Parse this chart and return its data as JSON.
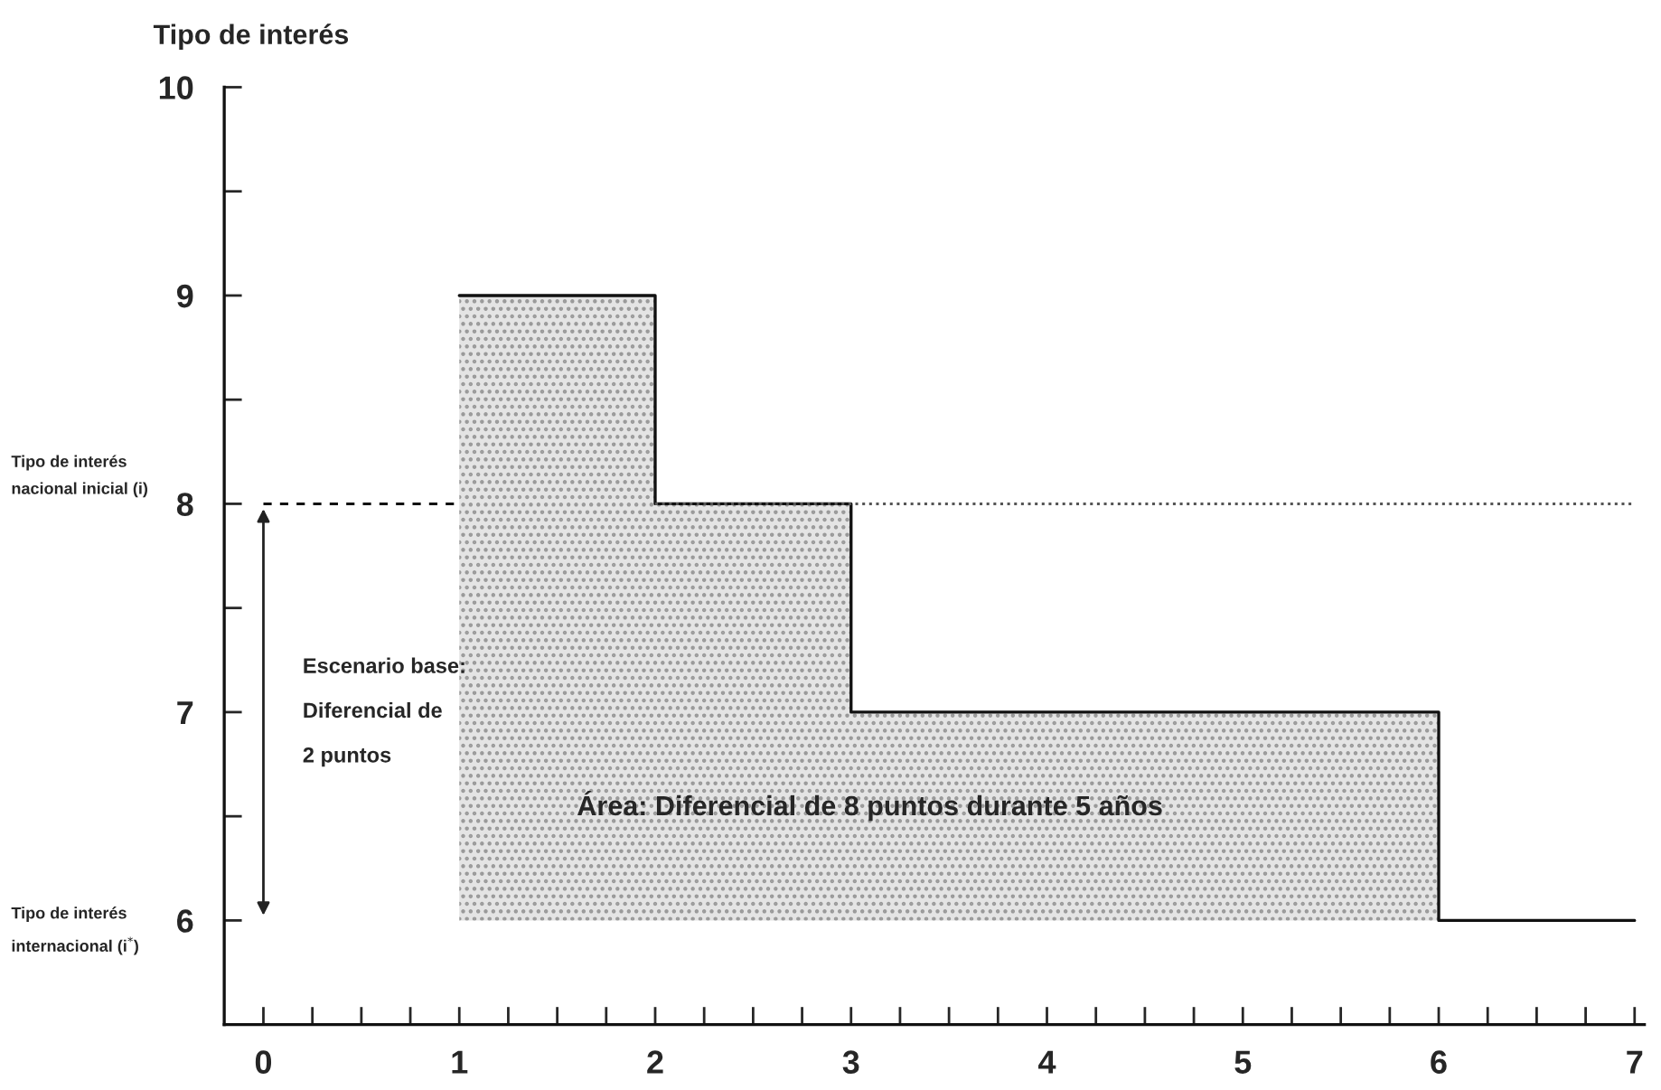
{
  "chart_data": {
    "type": "step",
    "ylabel": "Tipo de interés",
    "xlim": [
      -0.2,
      7.05
    ],
    "ylim": [
      5.5,
      10
    ],
    "xticks": [
      0,
      {
        "value": 0.25,
        "label": null
      },
      {
        "value": 0.5,
        "label": null
      },
      {
        "value": 0.75,
        "label": null
      },
      1,
      {
        "value": 1.25,
        "label": null
      },
      {
        "value": 1.5,
        "label": null
      },
      {
        "value": 1.75,
        "label": null
      },
      2,
      {
        "value": 2.25,
        "label": null
      },
      {
        "value": 2.5,
        "label": null
      },
      {
        "value": 2.75,
        "label": null
      },
      3,
      {
        "value": 3.25,
        "label": null
      },
      {
        "value": 3.5,
        "label": null
      },
      {
        "value": 3.75,
        "label": null
      },
      4,
      {
        "value": 4.25,
        "label": null
      },
      {
        "value": 4.5,
        "label": null
      },
      {
        "value": 4.75,
        "label": null
      },
      5,
      {
        "value": 5.25,
        "label": null
      },
      {
        "value": 5.5,
        "label": null
      },
      {
        "value": 5.75,
        "label": null
      },
      6,
      {
        "value": 6.25,
        "label": null
      },
      {
        "value": 6.5,
        "label": null
      },
      {
        "value": 6.75,
        "label": null
      },
      7
    ],
    "yticks": [
      6,
      {
        "value": 6.5,
        "label": null
      },
      7,
      {
        "value": 7.5,
        "label": null
      },
      8,
      {
        "value": 8.5,
        "label": null
      },
      9,
      {
        "value": 9.5,
        "label": null
      },
      10
    ],
    "grid": false,
    "legend": false,
    "series": [
      {
        "color": "#111111",
        "x": [
          1,
          2,
          3,
          6,
          7
        ],
        "values": [
          9,
          8,
          7,
          6,
          6
        ],
        "lower": [
          6,
          6,
          6,
          6,
          6
        ],
        "upper": [
          9,
          8,
          7,
          6,
          6
        ]
      },
      {
        "type": "line",
        "color": "#111111",
        "line_style": "dashed",
        "x": [
          0,
          1
        ],
        "values": [
          8,
          8
        ]
      },
      {
        "type": "line",
        "color": "#555555",
        "line_style": "dotted",
        "x": [
          2,
          7
        ],
        "values": [
          8,
          8
        ]
      }
    ],
    "annotations": [
      "Escenario base:\nDiferencial de\n2 puntos",
      "Área: Diferencial de 8 puntos durante 5 años",
      "Tipo de interés\nnacional inicial (i)",
      "Tipo de interés\ninternacional (i$^{*}$)"
    ]
  }
}
